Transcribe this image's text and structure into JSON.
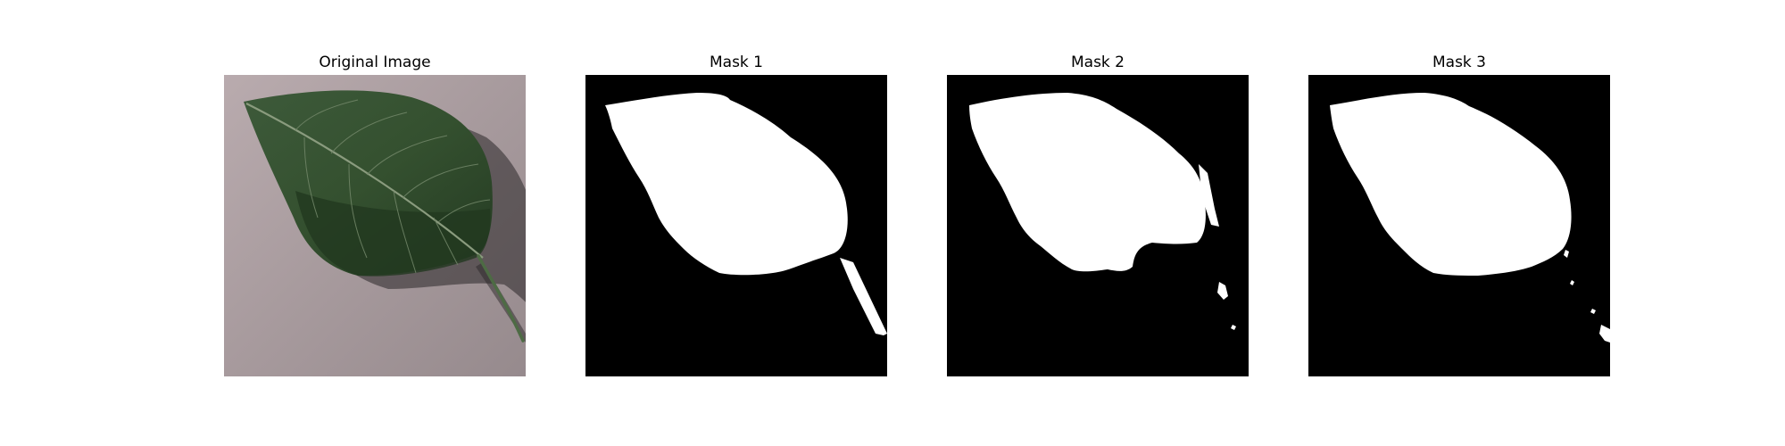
{
  "figure": {
    "panels": [
      {
        "title": "Original Image"
      },
      {
        "title": "Mask 1"
      },
      {
        "title": "Mask 2"
      },
      {
        "title": "Mask 3"
      }
    ]
  },
  "colors": {
    "background": "#ffffff",
    "paper": "#a89a9e",
    "leaf_dark": "#2f4a2e",
    "leaf_mid": "#3f5e3b",
    "vein": "#7d8f73",
    "shadow": "#2a2628",
    "mask_fg": "#ffffff",
    "mask_bg": "#000000"
  }
}
